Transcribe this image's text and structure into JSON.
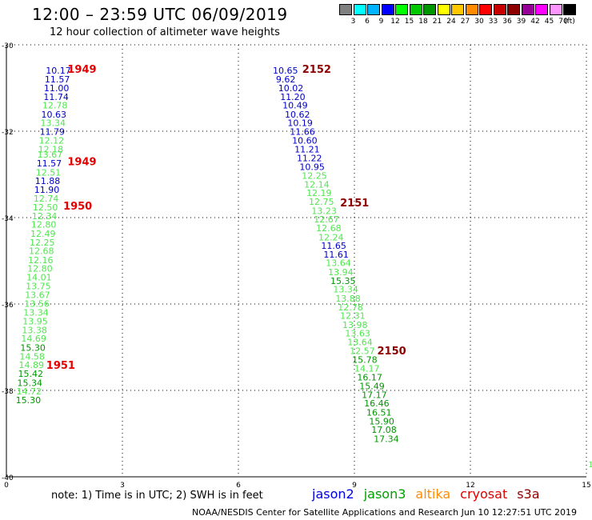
{
  "header": {
    "title": "12:00 – 23:59 UTC 06/09/2019",
    "subtitle": "12 hour collection of altimeter wave heights"
  },
  "scale": {
    "colors": [
      "#808080",
      "#00ffff",
      "#00b4ff",
      "#0000ff",
      "#00ff00",
      "#00c800",
      "#009600",
      "#ffff00",
      "#ffc800",
      "#ff8c00",
      "#ff0000",
      "#c80000",
      "#8c0000",
      "#960096",
      "#ff00ff",
      "#ff96ff",
      "#000000"
    ],
    "labels": [
      "3",
      "6",
      "9",
      "12",
      "15",
      "18",
      "21",
      "24",
      "27",
      "30",
      "33",
      "36",
      "39",
      "42",
      "45",
      "70",
      "(ft)"
    ]
  },
  "footer": {
    "note": "note:  1) Time is in UTC;  2) SWH is in feet",
    "legend": [
      {
        "name": "jason2",
        "color": "#0000e0"
      },
      {
        "name": "jason3",
        "color": "#00a000"
      },
      {
        "name": "altika",
        "color": "#ff8c00"
      },
      {
        "name": "cryosat",
        "color": "#e00000"
      },
      {
        "name": "s3a",
        "color": "#8c0000"
      }
    ],
    "credit": "NOAA/NESDIS Center for Satellite Applications and Research     Jun 10 12:27:51 UTC 2019"
  },
  "chart_data": {
    "type": "scatter",
    "xlim": [
      0,
      15
    ],
    "ylim": [
      -40,
      -30
    ],
    "x_ticks": [
      "0",
      "3",
      "6",
      "9",
      "12",
      "15"
    ],
    "y_ticks": [
      "-30",
      "-32",
      "-34",
      "-36",
      "-38",
      "-40"
    ],
    "grid": true,
    "stray_label": {
      "x": 15.05,
      "y": -39.7,
      "text": "1"
    },
    "colors": {
      "blue": "#0000c8",
      "lgreen": "#50e650",
      "dgreen": "#009600",
      "red": "#e60000",
      "maroon": "#8c0000"
    },
    "time_labels": [
      {
        "x": 1.58,
        "y": -30.56,
        "text": "1949",
        "color": "red"
      },
      {
        "x": 1.58,
        "y": -32.69,
        "text": "1949",
        "color": "red"
      },
      {
        "x": 1.47,
        "y": -33.72,
        "text": "1950",
        "color": "red"
      },
      {
        "x": 1.03,
        "y": -37.41,
        "text": "1951",
        "color": "red"
      },
      {
        "x": 7.65,
        "y": -30.56,
        "text": "2152",
        "color": "maroon"
      },
      {
        "x": 8.63,
        "y": -33.65,
        "text": "2151",
        "color": "maroon"
      },
      {
        "x": 9.59,
        "y": -37.07,
        "text": "2150",
        "color": "maroon"
      }
    ],
    "tracks": [
      {
        "name": "track-1",
        "points": [
          {
            "x": 1.02,
            "y": -30.59,
            "swh": "10.17",
            "c": "blue"
          },
          {
            "x": 0.99,
            "y": -30.8,
            "swh": "11.57",
            "c": "blue"
          },
          {
            "x": 0.97,
            "y": -31.0,
            "swh": "11.00",
            "c": "blue"
          },
          {
            "x": 0.96,
            "y": -31.2,
            "swh": "11.74",
            "c": "blue"
          },
          {
            "x": 0.93,
            "y": -31.4,
            "swh": "12.78",
            "c": "lgreen"
          },
          {
            "x": 0.9,
            "y": -31.61,
            "swh": "10.63",
            "c": "blue"
          },
          {
            "x": 0.88,
            "y": -31.81,
            "swh": "13.34",
            "c": "lgreen"
          },
          {
            "x": 0.86,
            "y": -32.01,
            "swh": "11.79",
            "c": "blue"
          },
          {
            "x": 0.84,
            "y": -32.21,
            "swh": "12.12",
            "c": "lgreen"
          },
          {
            "x": 0.82,
            "y": -32.42,
            "swh": "12.18",
            "c": "lgreen"
          },
          {
            "x": 0.8,
            "y": -32.54,
            "swh": "13.67",
            "c": "lgreen"
          },
          {
            "x": 0.78,
            "y": -32.74,
            "swh": "11.57",
            "c": "blue"
          },
          {
            "x": 0.76,
            "y": -32.95,
            "swh": "12.51",
            "c": "lgreen"
          },
          {
            "x": 0.74,
            "y": -33.15,
            "swh": "11.88",
            "c": "blue"
          },
          {
            "x": 0.72,
            "y": -33.35,
            "swh": "11.90",
            "c": "blue"
          },
          {
            "x": 0.7,
            "y": -33.56,
            "swh": "12.74",
            "c": "lgreen"
          },
          {
            "x": 0.68,
            "y": -33.76,
            "swh": "12.50",
            "c": "lgreen"
          },
          {
            "x": 0.66,
            "y": -33.96,
            "swh": "12.34",
            "c": "lgreen"
          },
          {
            "x": 0.64,
            "y": -34.16,
            "swh": "12.80",
            "c": "lgreen"
          },
          {
            "x": 0.62,
            "y": -34.37,
            "swh": "12.49",
            "c": "lgreen"
          },
          {
            "x": 0.6,
            "y": -34.57,
            "swh": "12.25",
            "c": "lgreen"
          },
          {
            "x": 0.58,
            "y": -34.77,
            "swh": "12.68",
            "c": "lgreen"
          },
          {
            "x": 0.56,
            "y": -34.98,
            "swh": "12.16",
            "c": "lgreen"
          },
          {
            "x": 0.54,
            "y": -35.18,
            "swh": "12.80",
            "c": "lgreen"
          },
          {
            "x": 0.52,
            "y": -35.38,
            "swh": "14.01",
            "c": "lgreen"
          },
          {
            "x": 0.5,
            "y": -35.58,
            "swh": "13.75",
            "c": "lgreen"
          },
          {
            "x": 0.48,
            "y": -35.79,
            "swh": "13.67",
            "c": "lgreen"
          },
          {
            "x": 0.46,
            "y": -35.99,
            "swh": "13.56",
            "c": "lgreen"
          },
          {
            "x": 0.44,
            "y": -36.19,
            "swh": "13.34",
            "c": "lgreen"
          },
          {
            "x": 0.42,
            "y": -36.4,
            "swh": "13.95",
            "c": "lgreen"
          },
          {
            "x": 0.4,
            "y": -36.6,
            "swh": "13.38",
            "c": "lgreen"
          },
          {
            "x": 0.38,
            "y": -36.8,
            "swh": "14.69",
            "c": "lgreen"
          },
          {
            "x": 0.36,
            "y": -37.01,
            "swh": "15.30",
            "c": "dgreen"
          },
          {
            "x": 0.34,
            "y": -37.21,
            "swh": "14.58",
            "c": "lgreen"
          },
          {
            "x": 0.32,
            "y": -37.41,
            "swh": "14.89",
            "c": "lgreen"
          },
          {
            "x": 0.3,
            "y": -37.61,
            "swh": "15.42",
            "c": "dgreen"
          },
          {
            "x": 0.28,
            "y": -37.82,
            "swh": "15.34",
            "c": "dgreen"
          },
          {
            "x": 0.26,
            "y": -38.02,
            "swh": "14.72",
            "c": "lgreen"
          },
          {
            "x": 0.24,
            "y": -38.22,
            "swh": "15.30",
            "c": "dgreen"
          }
        ]
      },
      {
        "name": "track-2",
        "points": [
          {
            "x": 6.89,
            "y": -30.59,
            "swh": "10.65",
            "c": "blue"
          },
          {
            "x": 6.97,
            "y": -30.8,
            "swh": "9.62",
            "c": "blue"
          },
          {
            "x": 7.03,
            "y": -31.0,
            "swh": "10.02",
            "c": "blue"
          },
          {
            "x": 7.08,
            "y": -31.2,
            "swh": "11.20",
            "c": "blue"
          },
          {
            "x": 7.14,
            "y": -31.4,
            "swh": "10.49",
            "c": "blue"
          },
          {
            "x": 7.2,
            "y": -31.61,
            "swh": "10.62",
            "c": "blue"
          },
          {
            "x": 7.27,
            "y": -31.81,
            "swh": "10.19",
            "c": "blue"
          },
          {
            "x": 7.33,
            "y": -32.01,
            "swh": "11.66",
            "c": "blue"
          },
          {
            "x": 7.39,
            "y": -32.21,
            "swh": "10.60",
            "c": "blue"
          },
          {
            "x": 7.45,
            "y": -32.42,
            "swh": "11.21",
            "c": "blue"
          },
          {
            "x": 7.51,
            "y": -32.62,
            "swh": "11.22",
            "c": "blue"
          },
          {
            "x": 7.58,
            "y": -32.82,
            "swh": "10.95",
            "c": "blue"
          },
          {
            "x": 7.64,
            "y": -33.03,
            "swh": "12.25",
            "c": "lgreen"
          },
          {
            "x": 7.7,
            "y": -33.23,
            "swh": "12.14",
            "c": "lgreen"
          },
          {
            "x": 7.76,
            "y": -33.43,
            "swh": "12.19",
            "c": "lgreen"
          },
          {
            "x": 7.82,
            "y": -33.63,
            "swh": "12.75",
            "c": "lgreen"
          },
          {
            "x": 7.89,
            "y": -33.84,
            "swh": "13.23",
            "c": "lgreen"
          },
          {
            "x": 7.95,
            "y": -34.04,
            "swh": "12.67",
            "c": "lgreen"
          },
          {
            "x": 8.01,
            "y": -34.24,
            "swh": "12.68",
            "c": "lgreen"
          },
          {
            "x": 8.07,
            "y": -34.45,
            "swh": "12.24",
            "c": "lgreen"
          },
          {
            "x": 8.14,
            "y": -34.65,
            "swh": "11.65",
            "c": "blue"
          },
          {
            "x": 8.2,
            "y": -34.85,
            "swh": "11.61",
            "c": "blue"
          },
          {
            "x": 8.26,
            "y": -35.05,
            "swh": "13.64",
            "c": "lgreen"
          },
          {
            "x": 8.32,
            "y": -35.26,
            "swh": "13.94",
            "c": "lgreen"
          },
          {
            "x": 8.38,
            "y": -35.46,
            "swh": "15.35",
            "c": "dgreen"
          },
          {
            "x": 8.45,
            "y": -35.66,
            "swh": "13.34",
            "c": "lgreen"
          },
          {
            "x": 8.51,
            "y": -35.87,
            "swh": "13.88",
            "c": "lgreen"
          },
          {
            "x": 8.57,
            "y": -36.07,
            "swh": "12.78",
            "c": "lgreen"
          },
          {
            "x": 8.63,
            "y": -36.27,
            "swh": "12.31",
            "c": "lgreen"
          },
          {
            "x": 8.69,
            "y": -36.48,
            "swh": "13.98",
            "c": "lgreen"
          },
          {
            "x": 8.76,
            "y": -36.68,
            "swh": "13.63",
            "c": "lgreen"
          },
          {
            "x": 8.82,
            "y": -36.88,
            "swh": "13.64",
            "c": "lgreen"
          },
          {
            "x": 8.88,
            "y": -37.08,
            "swh": "12.57",
            "c": "lgreen"
          },
          {
            "x": 8.94,
            "y": -37.29,
            "swh": "15.78",
            "c": "dgreen"
          },
          {
            "x": 9.0,
            "y": -37.49,
            "swh": "14.17",
            "c": "lgreen"
          },
          {
            "x": 9.07,
            "y": -37.69,
            "swh": "16.17",
            "c": "dgreen"
          },
          {
            "x": 9.13,
            "y": -37.9,
            "swh": "15.49",
            "c": "dgreen"
          },
          {
            "x": 9.19,
            "y": -38.1,
            "swh": "17.17",
            "c": "dgreen"
          },
          {
            "x": 9.25,
            "y": -38.3,
            "swh": "16.46",
            "c": "dgreen"
          },
          {
            "x": 9.31,
            "y": -38.51,
            "swh": "16.51",
            "c": "dgreen"
          },
          {
            "x": 9.38,
            "y": -38.71,
            "swh": "15.90",
            "c": "dgreen"
          },
          {
            "x": 9.44,
            "y": -38.91,
            "swh": "17.08",
            "c": "dgreen"
          },
          {
            "x": 9.5,
            "y": -39.12,
            "swh": "17.34",
            "c": "dgreen"
          }
        ]
      }
    ]
  }
}
